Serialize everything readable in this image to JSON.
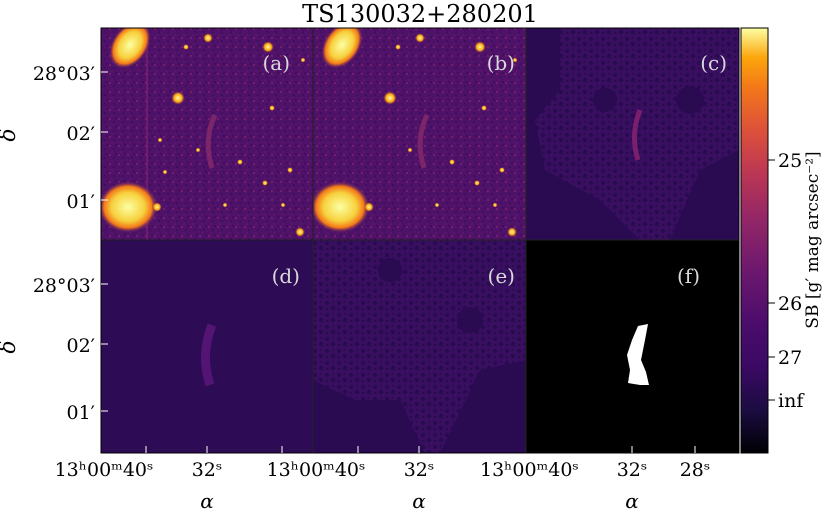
{
  "title": "TS130032+280201",
  "y_axis_label": "δ",
  "x_axis_label": "α",
  "y_ticks": [
    "28°03′",
    "02′",
    "01′"
  ],
  "x_ticks": {
    "left": [
      "13ʰ00ᵐ40ˢ",
      "32ˢ"
    ],
    "middle": [
      "13ʰ00ᵐ40ˢ",
      "32ˢ"
    ],
    "right": [
      "32ˢ",
      "28ˢ"
    ]
  },
  "panels": [
    {
      "label": "(a)",
      "kind": "image"
    },
    {
      "label": "(b)",
      "kind": "image"
    },
    {
      "label": "(c)",
      "kind": "mask-texture"
    },
    {
      "label": "(d)",
      "kind": "model"
    },
    {
      "label": "(e)",
      "kind": "residual-texture"
    },
    {
      "label": "(f)",
      "kind": "binary-mask"
    }
  ],
  "colorbar": {
    "label": "SB [g′ mag arcsec⁻²]",
    "ticks": [
      "25",
      "26",
      "27",
      "inf"
    ],
    "colormap": [
      "#000004",
      "#1b0c41",
      "#4a0c6b",
      "#781c6d",
      "#a52c60",
      "#cf4446",
      "#ed6925",
      "#fb9b06",
      "#f7d13d",
      "#fcffa4"
    ]
  }
}
